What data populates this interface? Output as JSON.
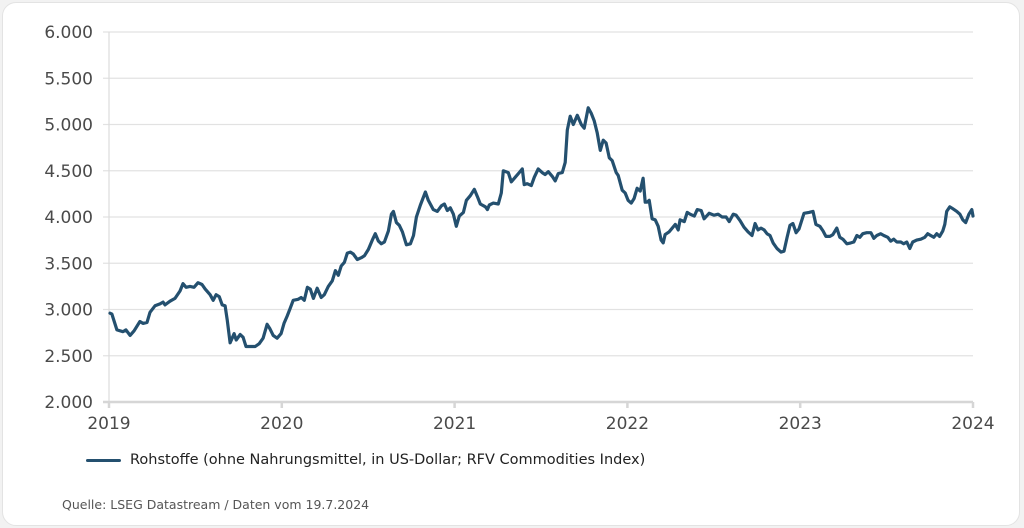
{
  "chart_data": {
    "type": "line",
    "title": "",
    "xlabel": "",
    "ylabel": "",
    "ylim": [
      2000,
      6000
    ],
    "xlim": [
      2019.0,
      2024.0
    ],
    "yticks": [
      2000,
      2500,
      3000,
      3500,
      4000,
      4500,
      5000,
      5500,
      6000
    ],
    "ytick_labels": [
      "2.000",
      "2.500",
      "3.000",
      "3.500",
      "4.000",
      "4.500",
      "5.000",
      "5.500",
      "6.000"
    ],
    "xticks": [
      2019,
      2020,
      2021,
      2022,
      2023,
      2024
    ],
    "xtick_labels": [
      "2019",
      "2020",
      "2021",
      "2022",
      "2023",
      "2024"
    ],
    "grid": "horizontal",
    "legend_position": "bottom-left",
    "series": [
      {
        "name": "Rohstoffe (ohne Nahrungsmittel, in US-Dollar; RFV Commodities Index)",
        "color": "#24506f",
        "points": [
          [
            2019.006,
            2960
          ],
          [
            2019.017,
            2950
          ],
          [
            2019.046,
            2780
          ],
          [
            2019.081,
            2760
          ],
          [
            2019.098,
            2780
          ],
          [
            2019.122,
            2720
          ],
          [
            2019.145,
            2770
          ],
          [
            2019.179,
            2870
          ],
          [
            2019.197,
            2850
          ],
          [
            2019.22,
            2860
          ],
          [
            2019.237,
            2970
          ],
          [
            2019.266,
            3040
          ],
          [
            2019.295,
            3060
          ],
          [
            2019.313,
            3080
          ],
          [
            2019.324,
            3050
          ],
          [
            2019.353,
            3090
          ],
          [
            2019.382,
            3120
          ],
          [
            2019.411,
            3200
          ],
          [
            2019.428,
            3280
          ],
          [
            2019.446,
            3240
          ],
          [
            2019.469,
            3250
          ],
          [
            2019.492,
            3240
          ],
          [
            2019.515,
            3290
          ],
          [
            2019.538,
            3270
          ],
          [
            2019.557,
            3220
          ],
          [
            2019.585,
            3160
          ],
          [
            2019.603,
            3100
          ],
          [
            2019.62,
            3160
          ],
          [
            2019.638,
            3140
          ],
          [
            2019.655,
            3050
          ],
          [
            2019.672,
            3040
          ],
          [
            2019.684,
            2890
          ],
          [
            2019.701,
            2640
          ],
          [
            2019.724,
            2740
          ],
          [
            2019.736,
            2670
          ],
          [
            2019.759,
            2730
          ],
          [
            2019.776,
            2700
          ],
          [
            2019.793,
            2600
          ],
          [
            2019.822,
            2600
          ],
          [
            2019.846,
            2600
          ],
          [
            2019.869,
            2630
          ],
          [
            2019.892,
            2690
          ],
          [
            2019.915,
            2840
          ],
          [
            2019.932,
            2790
          ],
          [
            2019.95,
            2720
          ],
          [
            2019.973,
            2690
          ],
          [
            2019.996,
            2740
          ],
          [
            2020.013,
            2850
          ],
          [
            2020.031,
            2930
          ],
          [
            2020.048,
            3010
          ],
          [
            2020.066,
            3100
          ],
          [
            2020.095,
            3110
          ],
          [
            2020.112,
            3130
          ],
          [
            2020.13,
            3100
          ],
          [
            2020.148,
            3240
          ],
          [
            2020.165,
            3220
          ],
          [
            2020.183,
            3120
          ],
          [
            2020.205,
            3230
          ],
          [
            2020.228,
            3130
          ],
          [
            2020.246,
            3160
          ],
          [
            2020.269,
            3250
          ],
          [
            2020.292,
            3310
          ],
          [
            2020.31,
            3420
          ],
          [
            2020.327,
            3370
          ],
          [
            2020.344,
            3470
          ],
          [
            2020.362,
            3510
          ],
          [
            2020.379,
            3610
          ],
          [
            2020.397,
            3620
          ],
          [
            2020.414,
            3600
          ],
          [
            2020.437,
            3540
          ],
          [
            2020.46,
            3560
          ],
          [
            2020.478,
            3580
          ],
          [
            2020.501,
            3650
          ],
          [
            2020.524,
            3750
          ],
          [
            2020.541,
            3820
          ],
          [
            2020.559,
            3740
          ],
          [
            2020.576,
            3710
          ],
          [
            2020.594,
            3730
          ],
          [
            2020.617,
            3850
          ],
          [
            2020.634,
            4030
          ],
          [
            2020.646,
            4060
          ],
          [
            2020.663,
            3940
          ],
          [
            2020.68,
            3910
          ],
          [
            2020.698,
            3840
          ],
          [
            2020.721,
            3700
          ],
          [
            2020.744,
            3710
          ],
          [
            2020.762,
            3800
          ],
          [
            2020.779,
            4000
          ],
          [
            2020.802,
            4130
          ],
          [
            2020.831,
            4270
          ],
          [
            2020.848,
            4180
          ],
          [
            2020.877,
            4080
          ],
          [
            2020.9,
            4060
          ],
          [
            2020.923,
            4120
          ],
          [
            2020.941,
            4140
          ],
          [
            2020.958,
            4070
          ],
          [
            2020.975,
            4100
          ],
          [
            2020.993,
            4030
          ],
          [
            2021.01,
            3900
          ],
          [
            2021.027,
            4010
          ],
          [
            2021.051,
            4050
          ],
          [
            2021.068,
            4180
          ],
          [
            2021.091,
            4230
          ],
          [
            2021.114,
            4300
          ],
          [
            2021.132,
            4220
          ],
          [
            2021.149,
            4140
          ],
          [
            2021.178,
            4110
          ],
          [
            2021.19,
            4080
          ],
          [
            2021.201,
            4130
          ],
          [
            2021.224,
            4150
          ],
          [
            2021.253,
            4140
          ],
          [
            2021.27,
            4260
          ],
          [
            2021.282,
            4500
          ],
          [
            2021.311,
            4480
          ],
          [
            2021.328,
            4380
          ],
          [
            2021.351,
            4430
          ],
          [
            2021.374,
            4480
          ],
          [
            2021.392,
            4520
          ],
          [
            2021.403,
            4350
          ],
          [
            2021.42,
            4360
          ],
          [
            2021.444,
            4340
          ],
          [
            2021.461,
            4430
          ],
          [
            2021.484,
            4520
          ],
          [
            2021.507,
            4480
          ],
          [
            2021.524,
            4460
          ],
          [
            2021.542,
            4490
          ],
          [
            2021.565,
            4440
          ],
          [
            2021.582,
            4390
          ],
          [
            2021.6,
            4470
          ],
          [
            2021.623,
            4480
          ],
          [
            2021.64,
            4590
          ],
          [
            2021.652,
            4940
          ],
          [
            2021.669,
            5090
          ],
          [
            2021.687,
            5000
          ],
          [
            2021.71,
            5100
          ],
          [
            2021.733,
            5000
          ],
          [
            2021.75,
            4960
          ],
          [
            2021.773,
            5180
          ],
          [
            2021.791,
            5120
          ],
          [
            2021.808,
            5040
          ],
          [
            2021.825,
            4910
          ],
          [
            2021.843,
            4720
          ],
          [
            2021.86,
            4830
          ],
          [
            2021.877,
            4800
          ],
          [
            2021.895,
            4640
          ],
          [
            2021.912,
            4610
          ],
          [
            2021.935,
            4480
          ],
          [
            2021.947,
            4450
          ],
          [
            2021.97,
            4290
          ],
          [
            2021.987,
            4260
          ],
          [
            2022.004,
            4180
          ],
          [
            2022.022,
            4150
          ],
          [
            2022.039,
            4200
          ],
          [
            2022.056,
            4310
          ],
          [
            2022.074,
            4280
          ],
          [
            2022.091,
            4420
          ],
          [
            2022.103,
            4160
          ],
          [
            2022.114,
            4160
          ],
          [
            2022.126,
            4180
          ],
          [
            2022.143,
            3980
          ],
          [
            2022.161,
            3970
          ],
          [
            2022.178,
            3900
          ],
          [
            2022.195,
            3750
          ],
          [
            2022.207,
            3720
          ],
          [
            2022.218,
            3810
          ],
          [
            2022.242,
            3840
          ],
          [
            2022.259,
            3880
          ],
          [
            2022.277,
            3920
          ],
          [
            2022.294,
            3860
          ],
          [
            2022.305,
            3970
          ],
          [
            2022.329,
            3950
          ],
          [
            2022.346,
            4050
          ],
          [
            2022.363,
            4030
          ],
          [
            2022.387,
            4010
          ],
          [
            2022.404,
            4080
          ],
          [
            2022.427,
            4070
          ],
          [
            2022.444,
            3980
          ],
          [
            2022.473,
            4040
          ],
          [
            2022.502,
            4020
          ],
          [
            2022.525,
            4030
          ],
          [
            2022.548,
            4000
          ],
          [
            2022.571,
            4000
          ],
          [
            2022.589,
            3950
          ],
          [
            2022.612,
            4030
          ],
          [
            2022.629,
            4020
          ],
          [
            2022.652,
            3960
          ],
          [
            2022.675,
            3890
          ],
          [
            2022.698,
            3840
          ],
          [
            2022.721,
            3800
          ],
          [
            2022.739,
            3930
          ],
          [
            2022.756,
            3860
          ],
          [
            2022.773,
            3880
          ],
          [
            2022.791,
            3860
          ],
          [
            2022.808,
            3820
          ],
          [
            2022.825,
            3800
          ],
          [
            2022.843,
            3720
          ],
          [
            2022.866,
            3660
          ],
          [
            2022.889,
            3620
          ],
          [
            2022.906,
            3630
          ],
          [
            2022.924,
            3780
          ],
          [
            2022.941,
            3910
          ],
          [
            2022.958,
            3930
          ],
          [
            2022.976,
            3830
          ],
          [
            2022.993,
            3870
          ],
          [
            2023.022,
            4040
          ],
          [
            2023.051,
            4050
          ],
          [
            2023.074,
            4060
          ],
          [
            2023.091,
            3920
          ],
          [
            2023.114,
            3900
          ],
          [
            2023.132,
            3850
          ],
          [
            2023.149,
            3790
          ],
          [
            2023.172,
            3790
          ],
          [
            2023.189,
            3810
          ],
          [
            2023.212,
            3880
          ],
          [
            2023.229,
            3780
          ],
          [
            2023.247,
            3760
          ],
          [
            2023.27,
            3710
          ],
          [
            2023.293,
            3720
          ],
          [
            2023.31,
            3730
          ],
          [
            2023.328,
            3800
          ],
          [
            2023.345,
            3780
          ],
          [
            2023.362,
            3820
          ],
          [
            2023.385,
            3830
          ],
          [
            2023.409,
            3830
          ],
          [
            2023.426,
            3770
          ],
          [
            2023.443,
            3800
          ],
          [
            2023.466,
            3820
          ],
          [
            2023.484,
            3800
          ],
          [
            2023.507,
            3780
          ],
          [
            2023.524,
            3740
          ],
          [
            2023.541,
            3760
          ],
          [
            2023.559,
            3730
          ],
          [
            2023.582,
            3730
          ],
          [
            2023.599,
            3710
          ],
          [
            2023.617,
            3730
          ],
          [
            2023.634,
            3660
          ],
          [
            2023.651,
            3730
          ],
          [
            2023.674,
            3750
          ],
          [
            2023.698,
            3760
          ],
          [
            2023.721,
            3780
          ],
          [
            2023.738,
            3820
          ],
          [
            2023.755,
            3800
          ],
          [
            2023.773,
            3780
          ],
          [
            2023.79,
            3820
          ],
          [
            2023.807,
            3790
          ],
          [
            2023.825,
            3850
          ],
          [
            2023.837,
            3920
          ],
          [
            2023.848,
            4060
          ],
          [
            2023.866,
            4110
          ],
          [
            2023.883,
            4090
          ],
          [
            2023.906,
            4060
          ],
          [
            2023.924,
            4030
          ],
          [
            2023.941,
            3970
          ],
          [
            2023.958,
            3940
          ],
          [
            2023.976,
            4030
          ],
          [
            2023.993,
            4080
          ],
          [
            2024.0,
            4010
          ]
        ]
      }
    ]
  },
  "legend": {
    "label": "Rohstoffe (ohne Nahrungsmittel, in US-Dollar; RFV Commodities Index)"
  },
  "source": "Quelle: LSEG Datastream / Daten vom 19.7.2024"
}
